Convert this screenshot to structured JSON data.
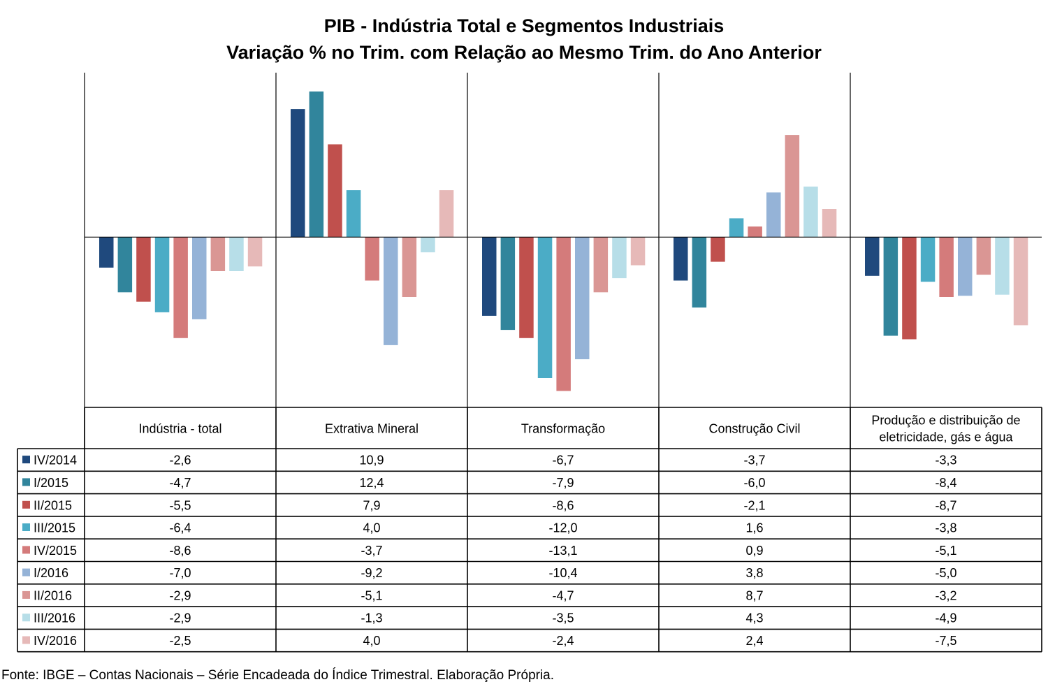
{
  "title_line1": "PIB - Indústria Total e Segmentos Industriais",
  "title_line2": "Variação % no Trim. com Relação ao Mesmo Trim. do Ano Anterior",
  "source_note": "Fonte: IBGE – Contas Nacionais – Série Encadeada do Índice Trimestral. Elaboração Própria.",
  "chart_data": {
    "type": "bar",
    "title": "PIB - Indústria Total e Segmentos Industriais / Variação % no Trim. com Relação ao Mesmo Trim. do Ano Anterior",
    "categories": [
      [
        "Indústria - total"
      ],
      [
        "Extrativa Mineral"
      ],
      [
        "Transformação"
      ],
      [
        "Construção Civil"
      ],
      [
        "Produção e distribuição de",
        "eletricidade, gás e água"
      ]
    ],
    "series": [
      {
        "name": "IV/2014",
        "color": "#1F497D",
        "values": [
          -2.6,
          10.9,
          -6.7,
          -3.7,
          -3.3
        ],
        "labels": [
          "-2,6",
          "10,9",
          "-6,7",
          "-3,7",
          "-3,3"
        ]
      },
      {
        "name": "I/2015",
        "color": "#31859C",
        "values": [
          -4.7,
          12.4,
          -7.9,
          -6.0,
          -8.4
        ],
        "labels": [
          "-4,7",
          "12,4",
          "-7,9",
          "-6,0",
          "-8,4"
        ]
      },
      {
        "name": "II/2015",
        "color": "#C0504D",
        "values": [
          -5.5,
          7.9,
          -8.6,
          -2.1,
          -8.7
        ],
        "labels": [
          "-5,5",
          "7,9",
          "-8,6",
          "-2,1",
          "-8,7"
        ]
      },
      {
        "name": "III/2015",
        "color": "#4BACC6",
        "values": [
          -6.4,
          4.0,
          -12.0,
          1.6,
          -3.8
        ],
        "labels": [
          "-6,4",
          "4,0",
          "-12,0",
          "1,6",
          "-3,8"
        ]
      },
      {
        "name": "IV/2015",
        "color": "#D47B7B",
        "values": [
          -8.6,
          -3.7,
          -13.1,
          0.9,
          -5.1
        ],
        "labels": [
          "-8,6",
          "-3,7",
          "-13,1",
          "0,9",
          "-5,1"
        ]
      },
      {
        "name": "I/2016",
        "color": "#95B3D7",
        "values": [
          -7.0,
          -9.2,
          -10.4,
          3.8,
          -5.0
        ],
        "labels": [
          "-7,0",
          "-9,2",
          "-10,4",
          "3,8",
          "-5,0"
        ]
      },
      {
        "name": "II/2016",
        "color": "#DA9694",
        "values": [
          -2.9,
          -5.1,
          -4.7,
          8.7,
          -3.2
        ],
        "labels": [
          "-2,9",
          "-5,1",
          "-4,7",
          "8,7",
          "-3,2"
        ]
      },
      {
        "name": "III/2016",
        "color": "#B7DEE8",
        "values": [
          -2.9,
          -1.3,
          -3.5,
          4.3,
          -4.9
        ],
        "labels": [
          "-2,9",
          "-1,3",
          "-3,5",
          "4,3",
          "-4,9"
        ]
      },
      {
        "name": "IV/2016",
        "color": "#E6B9B8",
        "values": [
          -2.5,
          4.0,
          -2.4,
          2.4,
          -7.5
        ],
        "labels": [
          "-2,5",
          "4,0",
          "-2,4",
          "2,4",
          "-7,5"
        ]
      }
    ],
    "ylim": [
      -14.5,
      14.0
    ],
    "grid": false,
    "legend": "data-table-left"
  }
}
